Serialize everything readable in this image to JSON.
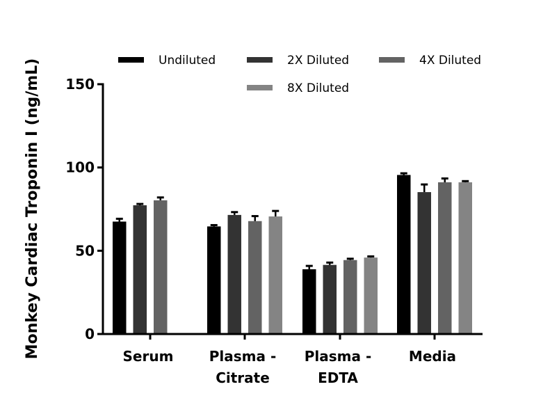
{
  "chart_data": {
    "type": "bar",
    "title": "",
    "xlabel": "",
    "ylabel": "Monkey Cardiac Troponin I (ng/mL)",
    "ylim": [
      0,
      150
    ],
    "yticks": [
      "0",
      "50",
      "100",
      "150"
    ],
    "grid": false,
    "legend_position": "top",
    "categories": [
      [
        "Serum"
      ],
      [
        "Plasma -",
        "Citrate"
      ],
      [
        "Plasma -",
        "EDTA"
      ],
      [
        "Media"
      ]
    ],
    "series": [
      {
        "name": "Undiluted",
        "color": "#000000",
        "values": [
          67.5,
          64.6,
          38.9,
          95.5
        ],
        "errors": [
          1.7,
          0.8,
          2.0,
          1.0
        ]
      },
      {
        "name": "2X Diluted",
        "color": "#333333",
        "values": [
          77.3,
          71.5,
          41.5,
          85.2
        ],
        "errors": [
          0.8,
          1.7,
          1.4,
          4.6
        ]
      },
      {
        "name": "4X Diluted",
        "color": "#636363",
        "values": [
          80.3,
          67.8,
          44.4,
          91.1
        ],
        "errors": [
          1.7,
          3.0,
          0.8,
          2.3
        ]
      },
      {
        "name": "8X Diluted",
        "color": "#848484",
        "values": [
          null,
          70.6,
          45.9,
          91.1
        ],
        "errors": [
          null,
          3.3,
          0.7,
          0.7
        ]
      }
    ]
  }
}
